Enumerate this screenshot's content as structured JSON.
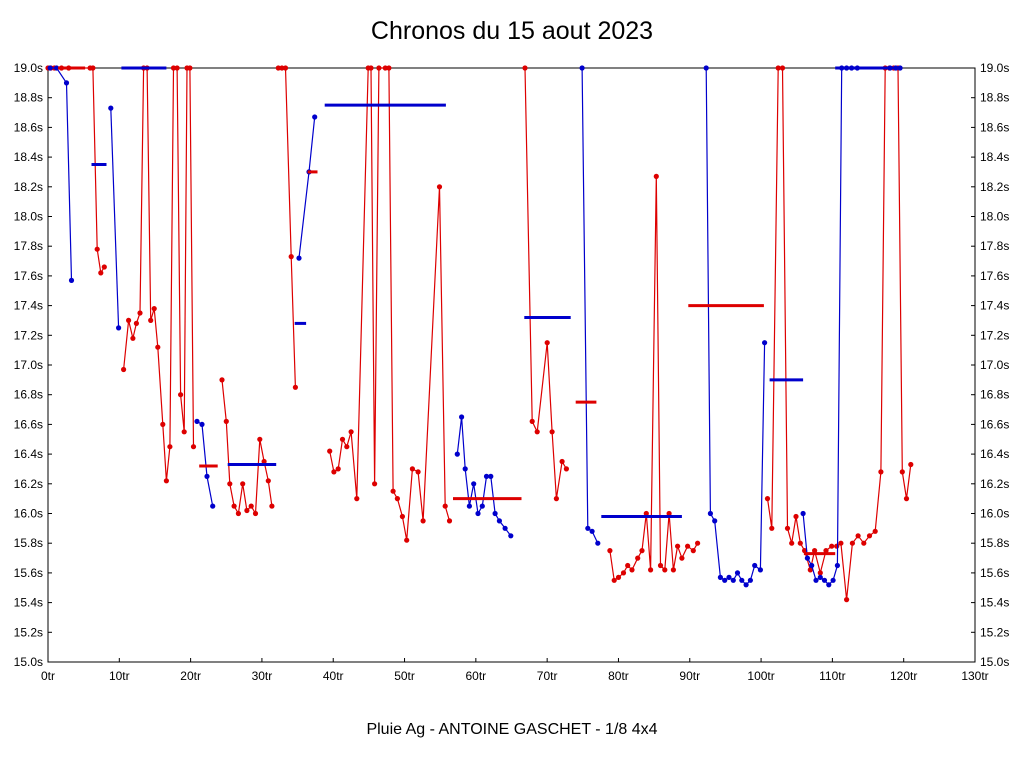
{
  "chart_data": {
    "type": "line",
    "title": "Chronos du 15 aout 2023",
    "subtitle": "Pluie Ag - ANTOINE GASCHET - 1/8 4x4",
    "xlim": [
      0,
      130
    ],
    "ylim": [
      15.0,
      19.0
    ],
    "x_tick_step": 10,
    "y_tick_step": 0.2,
    "x_unit": "tr",
    "y_unit": "s",
    "grid": false,
    "legend": "none",
    "x_ticks": [
      "0tr",
      "10tr",
      "20tr",
      "30tr",
      "40tr",
      "50tr",
      "60tr",
      "70tr",
      "80tr",
      "90tr",
      "100tr",
      "110tr",
      "120tr",
      "130tr"
    ],
    "y_ticks": [
      "15.0s",
      "15.2s",
      "15.4s",
      "15.6s",
      "15.8s",
      "16.0s",
      "16.2s",
      "16.4s",
      "16.6s",
      "16.8s",
      "17.0s",
      "17.2s",
      "17.4s",
      "17.6s",
      "17.8s",
      "18.0s",
      "18.2s",
      "18.4s",
      "18.6s",
      "18.8s",
      "19.0s"
    ],
    "colors": {
      "red": "#dd0000",
      "blue": "#0000cc"
    },
    "series": [
      {
        "name": "red-driver",
        "color": "#dd0000",
        "runs": [
          [
            [
              0,
              19
            ],
            [
              0.4,
              19
            ],
            [
              0.9,
              19
            ],
            [
              1.9,
              19
            ],
            [
              2.9,
              19
            ],
            [
              5.9,
              19
            ],
            [
              6.3,
              19
            ],
            [
              6.9,
              17.78
            ],
            [
              7.4,
              17.62
            ],
            [
              7.9,
              17.66
            ]
          ],
          [
            [
              10.6,
              16.97
            ],
            [
              11.3,
              17.3
            ],
            [
              11.9,
              17.18
            ],
            [
              12.4,
              17.28
            ],
            [
              12.9,
              17.35
            ],
            [
              13.4,
              19
            ],
            [
              13.9,
              19
            ],
            [
              14.4,
              17.3
            ],
            [
              14.9,
              17.38
            ],
            [
              15.4,
              17.12
            ],
            [
              16.1,
              16.6
            ],
            [
              16.6,
              16.22
            ],
            [
              17.1,
              16.45
            ],
            [
              17.6,
              19
            ],
            [
              18.1,
              19
            ],
            [
              18.6,
              16.8
            ],
            [
              19.1,
              16.55
            ],
            [
              19.5,
              19
            ],
            [
              19.9,
              19
            ],
            [
              20.4,
              16.45
            ]
          ],
          [
            [
              24.4,
              16.9
            ],
            [
              25,
              16.62
            ],
            [
              25.5,
              16.2
            ],
            [
              26.1,
              16.05
            ],
            [
              26.7,
              16.0
            ],
            [
              27.3,
              16.2
            ],
            [
              27.9,
              16.02
            ],
            [
              28.5,
              16.05
            ],
            [
              29.1,
              16.0
            ],
            [
              29.7,
              16.5
            ],
            [
              30.3,
              16.35
            ],
            [
              30.9,
              16.22
            ],
            [
              31.4,
              16.05
            ]
          ],
          [
            [
              32.3,
              19
            ],
            [
              32.8,
              19
            ],
            [
              33.3,
              19
            ],
            [
              34.1,
              17.73
            ],
            [
              34.7,
              16.85
            ]
          ],
          [
            [
              39.5,
              16.42
            ],
            [
              40.1,
              16.28
            ],
            [
              40.7,
              16.3
            ],
            [
              41.3,
              16.5
            ],
            [
              41.9,
              16.45
            ],
            [
              42.5,
              16.55
            ],
            [
              43.3,
              16.1
            ],
            [
              44.9,
              19
            ],
            [
              45.3,
              19
            ],
            [
              45.8,
              16.2
            ],
            [
              46.4,
              19
            ],
            [
              47.3,
              19
            ],
            [
              47.8,
              19
            ],
            [
              48.4,
              16.15
            ],
            [
              49,
              16.1
            ],
            [
              49.7,
              15.98
            ],
            [
              50.3,
              15.82
            ],
            [
              51.1,
              16.3
            ],
            [
              51.9,
              16.28
            ],
            [
              52.6,
              15.95
            ],
            [
              54.9,
              18.2
            ],
            [
              55.7,
              16.05
            ],
            [
              56.3,
              15.95
            ]
          ],
          [
            [
              66.9,
              19
            ],
            [
              67.9,
              16.62
            ],
            [
              68.6,
              16.55
            ],
            [
              70,
              17.15
            ],
            [
              70.7,
              16.55
            ],
            [
              71.3,
              16.1
            ],
            [
              72.1,
              16.35
            ],
            [
              72.7,
              16.3
            ]
          ],
          [
            [
              78.8,
              15.75
            ],
            [
              79.4,
              15.55
            ],
            [
              80,
              15.57
            ],
            [
              80.7,
              15.6
            ],
            [
              81.3,
              15.65
            ],
            [
              81.9,
              15.62
            ],
            [
              82.7,
              15.7
            ],
            [
              83.3,
              15.75
            ],
            [
              83.9,
              16.0
            ],
            [
              84.5,
              15.62
            ],
            [
              85.3,
              18.27
            ],
            [
              85.9,
              15.65
            ],
            [
              86.5,
              15.62
            ],
            [
              87.1,
              16.0
            ],
            [
              87.7,
              15.62
            ],
            [
              88.3,
              15.78
            ],
            [
              88.9,
              15.7
            ],
            [
              89.7,
              15.78
            ],
            [
              90.5,
              15.75
            ],
            [
              91.1,
              15.8
            ]
          ],
          [
            [
              100.9,
              16.1
            ],
            [
              101.5,
              15.9
            ],
            [
              102.4,
              19
            ],
            [
              103,
              19
            ],
            [
              103.7,
              15.9
            ],
            [
              104.3,
              15.8
            ],
            [
              104.9,
              15.98
            ],
            [
              105.5,
              15.8
            ],
            [
              106.1,
              15.75
            ],
            [
              106.9,
              15.62
            ],
            [
              107.5,
              15.75
            ],
            [
              108.3,
              15.6
            ],
            [
              109.1,
              15.75
            ],
            [
              109.9,
              15.78
            ]
          ],
          [
            [
              110.6,
              15.78
            ],
            [
              111.2,
              15.8
            ],
            [
              112,
              15.42
            ],
            [
              112.8,
              15.8
            ],
            [
              113.6,
              15.85
            ],
            [
              114.4,
              15.8
            ],
            [
              115.2,
              15.85
            ],
            [
              116,
              15.88
            ],
            [
              116.8,
              16.28
            ],
            [
              117.4,
              19
            ],
            [
              118,
              19
            ],
            [
              118.6,
              19
            ],
            [
              119.2,
              19
            ],
            [
              119.8,
              16.28
            ],
            [
              120.4,
              16.1
            ],
            [
              121,
              16.33
            ]
          ]
        ]
      },
      {
        "name": "blue-driver",
        "color": "#0000cc",
        "runs": [
          [
            [
              0.3,
              19
            ],
            [
              1.2,
              19
            ],
            [
              2.6,
              18.9
            ],
            [
              3.3,
              17.57
            ]
          ],
          [
            [
              8.8,
              18.73
            ],
            [
              9.9,
              17.25
            ]
          ],
          [
            [
              20.9,
              16.62
            ],
            [
              21.6,
              16.6
            ],
            [
              22.3,
              16.25
            ],
            [
              23.1,
              16.05
            ]
          ],
          [
            [
              35.2,
              17.72
            ],
            [
              36.6,
              18.3
            ],
            [
              37.4,
              18.67
            ]
          ],
          [
            [
              57.4,
              16.4
            ],
            [
              58,
              16.65
            ],
            [
              58.5,
              16.3
            ],
            [
              59.1,
              16.05
            ],
            [
              59.7,
              16.2
            ],
            [
              60.3,
              16.0
            ],
            [
              60.9,
              16.05
            ],
            [
              61.5,
              16.25
            ],
            [
              62.1,
              16.25
            ],
            [
              62.7,
              16.0
            ],
            [
              63.3,
              15.95
            ],
            [
              64.1,
              15.9
            ],
            [
              64.9,
              15.85
            ]
          ],
          [
            [
              74.9,
              19
            ],
            [
              75.7,
              15.9
            ],
            [
              76.3,
              15.88
            ],
            [
              77.1,
              15.8
            ]
          ],
          [
            [
              92.3,
              19
            ],
            [
              92.9,
              16.0
            ],
            [
              93.5,
              15.95
            ],
            [
              94.3,
              15.57
            ],
            [
              94.9,
              15.55
            ],
            [
              95.5,
              15.57
            ],
            [
              96.1,
              15.55
            ],
            [
              96.7,
              15.6
            ],
            [
              97.3,
              15.55
            ],
            [
              97.9,
              15.52
            ],
            [
              98.5,
              15.55
            ],
            [
              99.1,
              15.65
            ],
            [
              99.9,
              15.62
            ],
            [
              100.5,
              17.15
            ]
          ],
          [
            [
              105.9,
              16.0
            ],
            [
              106.5,
              15.7
            ],
            [
              107.1,
              15.65
            ],
            [
              107.7,
              15.55
            ],
            [
              108.3,
              15.57
            ],
            [
              108.9,
              15.55
            ],
            [
              109.5,
              15.52
            ],
            [
              110.1,
              15.55
            ],
            [
              110.7,
              15.65
            ],
            [
              111.3,
              19
            ],
            [
              112,
              19
            ],
            [
              112.7,
              19
            ],
            [
              113.5,
              19
            ]
          ],
          [
            [
              118.1,
              19
            ],
            [
              118.9,
              19
            ],
            [
              119.5,
              19
            ]
          ]
        ]
      }
    ],
    "segments": [
      {
        "color": "#dd0000",
        "x1": 1.4,
        "x2": 5.2,
        "y": 19.0
      },
      {
        "color": "#0000cc",
        "x1": 6.1,
        "x2": 8.2,
        "y": 18.35
      },
      {
        "color": "#0000cc",
        "x1": 10.3,
        "x2": 16.6,
        "y": 19.0
      },
      {
        "color": "#dd0000",
        "x1": 21.2,
        "x2": 23.8,
        "y": 16.32
      },
      {
        "color": "#0000cc",
        "x1": 25.2,
        "x2": 32.0,
        "y": 16.33
      },
      {
        "color": "#0000cc",
        "x1": 34.6,
        "x2": 36.2,
        "y": 17.28
      },
      {
        "color": "#dd0000",
        "x1": 36.4,
        "x2": 37.8,
        "y": 18.3
      },
      {
        "color": "#0000cc",
        "x1": 38.8,
        "x2": 55.8,
        "y": 18.75
      },
      {
        "color": "#dd0000",
        "x1": 56.8,
        "x2": 66.4,
        "y": 16.1
      },
      {
        "color": "#0000cc",
        "x1": 66.8,
        "x2": 73.3,
        "y": 17.32
      },
      {
        "color": "#dd0000",
        "x1": 74.0,
        "x2": 76.9,
        "y": 16.75
      },
      {
        "color": "#0000cc",
        "x1": 77.6,
        "x2": 88.9,
        "y": 15.98
      },
      {
        "color": "#dd0000",
        "x1": 89.8,
        "x2": 100.4,
        "y": 17.4
      },
      {
        "color": "#0000cc",
        "x1": 101.2,
        "x2": 105.9,
        "y": 16.9
      },
      {
        "color": "#dd0000",
        "x1": 106.0,
        "x2": 110.4,
        "y": 15.73
      },
      {
        "color": "#0000cc",
        "x1": 110.4,
        "x2": 119.6,
        "y": 19.0
      }
    ]
  }
}
